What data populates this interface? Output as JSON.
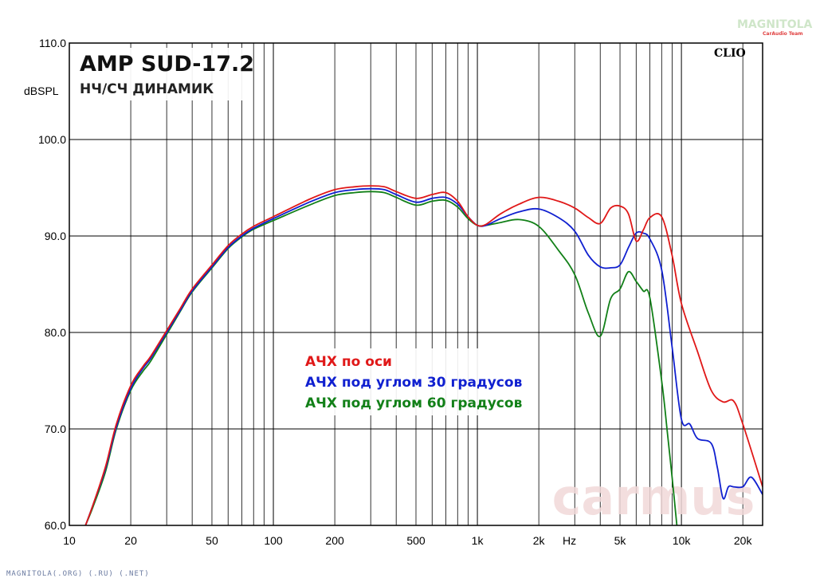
{
  "chart_data": {
    "type": "line",
    "title": "AMP SUD-17.2",
    "subtitle": "НЧ/СЧ ДИНАМИК",
    "ylabel": "dBSPL",
    "xlabel": "Hz",
    "x_scale": "log",
    "xlim": [
      10,
      25000
    ],
    "ylim": [
      60,
      110
    ],
    "grid": true,
    "legend_position": "center",
    "y_ticks": [
      "60.0",
      "70.0",
      "80.0",
      "90.0",
      "100.0",
      "110.0"
    ],
    "x_ticks": [
      {
        "value": 10,
        "label": "10"
      },
      {
        "value": 20,
        "label": "20"
      },
      {
        "value": 50,
        "label": "50"
      },
      {
        "value": 100,
        "label": "100"
      },
      {
        "value": 200,
        "label": "200"
      },
      {
        "value": 500,
        "label": "500"
      },
      {
        "value": 1000,
        "label": "1k"
      },
      {
        "value": 2000,
        "label": "2k"
      },
      {
        "value": 5000,
        "label": "5k"
      },
      {
        "value": 10000,
        "label": "10k"
      },
      {
        "value": 20000,
        "label": "20k"
      }
    ],
    "series": [
      {
        "name": "АЧХ по оси",
        "color": "#e01818",
        "points": [
          [
            12,
            60
          ],
          [
            13,
            62
          ],
          [
            15,
            66
          ],
          [
            17,
            70.5
          ],
          [
            20,
            74.5
          ],
          [
            23,
            76.5
          ],
          [
            25,
            77.5
          ],
          [
            30,
            80.2
          ],
          [
            35,
            82.5
          ],
          [
            40,
            84.5
          ],
          [
            50,
            87
          ],
          [
            60,
            89
          ],
          [
            70,
            90.2
          ],
          [
            80,
            91
          ],
          [
            100,
            92
          ],
          [
            150,
            93.8
          ],
          [
            200,
            94.8
          ],
          [
            250,
            95.1
          ],
          [
            300,
            95.2
          ],
          [
            350,
            95.1
          ],
          [
            400,
            94.6
          ],
          [
            500,
            93.9
          ],
          [
            600,
            94.3
          ],
          [
            700,
            94.5
          ],
          [
            800,
            93.6
          ],
          [
            900,
            92
          ],
          [
            1000,
            91.1
          ],
          [
            1100,
            91.2
          ],
          [
            1300,
            92.3
          ],
          [
            1600,
            93.3
          ],
          [
            2000,
            94
          ],
          [
            2500,
            93.6
          ],
          [
            3000,
            92.9
          ],
          [
            3500,
            91.9
          ],
          [
            4000,
            91.3
          ],
          [
            4500,
            92.9
          ],
          [
            5000,
            93.1
          ],
          [
            5500,
            92.3
          ],
          [
            6000,
            89.5
          ],
          [
            6500,
            90.6
          ],
          [
            7000,
            91.9
          ],
          [
            8000,
            92
          ],
          [
            9000,
            88
          ],
          [
            10000,
            83
          ],
          [
            12000,
            78
          ],
          [
            14000,
            74
          ],
          [
            16000,
            72.8
          ],
          [
            18000,
            72.9
          ],
          [
            20000,
            70.5
          ],
          [
            25000,
            64
          ]
        ]
      },
      {
        "name": "АЧХ под углом 30 градусов",
        "color": "#1020d0",
        "points": [
          [
            12,
            60
          ],
          [
            13,
            62
          ],
          [
            15,
            65.8
          ],
          [
            17,
            70.2
          ],
          [
            20,
            74.2
          ],
          [
            23,
            76.3
          ],
          [
            25,
            77.3
          ],
          [
            30,
            80
          ],
          [
            35,
            82.3
          ],
          [
            40,
            84.3
          ],
          [
            50,
            86.8
          ],
          [
            60,
            88.8
          ],
          [
            70,
            90
          ],
          [
            80,
            90.8
          ],
          [
            100,
            91.8
          ],
          [
            150,
            93.5
          ],
          [
            200,
            94.5
          ],
          [
            250,
            94.8
          ],
          [
            300,
            94.9
          ],
          [
            350,
            94.8
          ],
          [
            400,
            94.3
          ],
          [
            500,
            93.5
          ],
          [
            600,
            93.9
          ],
          [
            700,
            94
          ],
          [
            800,
            93.3
          ],
          [
            900,
            92
          ],
          [
            1000,
            91.1
          ],
          [
            1100,
            91.1
          ],
          [
            1300,
            91.8
          ],
          [
            1600,
            92.5
          ],
          [
            2000,
            92.8
          ],
          [
            2500,
            91.9
          ],
          [
            3000,
            90.5
          ],
          [
            3500,
            88
          ],
          [
            4000,
            86.8
          ],
          [
            4500,
            86.7
          ],
          [
            5000,
            87
          ],
          [
            5500,
            88.8
          ],
          [
            6000,
            90.3
          ],
          [
            6500,
            90.3
          ],
          [
            7000,
            89.7
          ],
          [
            8000,
            86.5
          ],
          [
            9000,
            78.5
          ],
          [
            10000,
            71
          ],
          [
            11000,
            70.5
          ],
          [
            12000,
            69
          ],
          [
            14000,
            68.5
          ],
          [
            15000,
            66
          ],
          [
            16000,
            62.8
          ],
          [
            17000,
            64
          ],
          [
            18000,
            64
          ],
          [
            20000,
            64
          ],
          [
            22000,
            65
          ],
          [
            25000,
            63.2
          ]
        ]
      },
      {
        "name": "АЧХ под углом 60 градусов",
        "color": "#128018",
        "points": [
          [
            12,
            60
          ],
          [
            13,
            61.8
          ],
          [
            15,
            65.5
          ],
          [
            17,
            70
          ],
          [
            20,
            74
          ],
          [
            23,
            76
          ],
          [
            25,
            77
          ],
          [
            30,
            79.8
          ],
          [
            35,
            82.2
          ],
          [
            40,
            84.2
          ],
          [
            50,
            86.7
          ],
          [
            60,
            88.7
          ],
          [
            70,
            89.9
          ],
          [
            80,
            90.7
          ],
          [
            100,
            91.6
          ],
          [
            150,
            93.2
          ],
          [
            200,
            94.2
          ],
          [
            250,
            94.5
          ],
          [
            300,
            94.6
          ],
          [
            350,
            94.5
          ],
          [
            400,
            94
          ],
          [
            500,
            93.2
          ],
          [
            600,
            93.6
          ],
          [
            700,
            93.7
          ],
          [
            800,
            93
          ],
          [
            900,
            91.8
          ],
          [
            1000,
            91.1
          ],
          [
            1100,
            91.1
          ],
          [
            1300,
            91.4
          ],
          [
            1600,
            91.7
          ],
          [
            2000,
            91
          ],
          [
            2500,
            88.5
          ],
          [
            3000,
            86
          ],
          [
            3500,
            82
          ],
          [
            4000,
            79.6
          ],
          [
            4500,
            83.5
          ],
          [
            5000,
            84.5
          ],
          [
            5500,
            86.3
          ],
          [
            6000,
            85.3
          ],
          [
            6500,
            84.3
          ],
          [
            7000,
            83.6
          ],
          [
            8000,
            75
          ],
          [
            8500,
            70
          ],
          [
            9000,
            65
          ],
          [
            9500,
            60
          ]
        ]
      }
    ]
  },
  "watermarks": {
    "top_right_brand": "MAGNITOLA",
    "top_right_tag": "CarAudio Team",
    "clio": "CLIO",
    "center_brand": "carmus",
    "footer": "MAGNITOLA(.ORG) (.RU) (.NET)"
  }
}
